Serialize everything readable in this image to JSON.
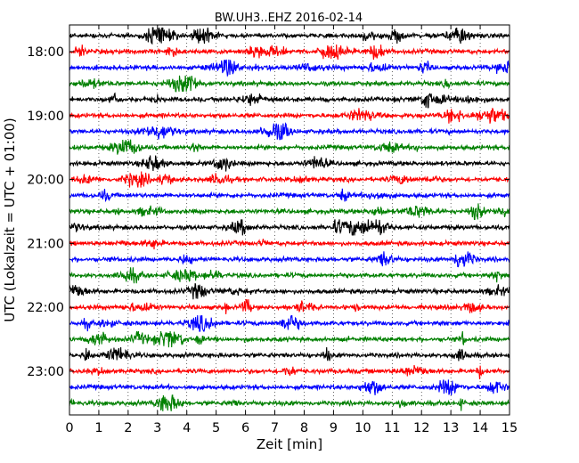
{
  "chart_data": {
    "type": "line",
    "title": "BW.UH3..EHZ 2016-02-14",
    "xlabel": "Zeit  [min]",
    "ylabel": "UTC (Lokalzeit = UTC + 01:00)",
    "xlim": [
      0,
      15
    ],
    "x_ticks": [
      "0",
      "1",
      "2",
      "3",
      "4",
      "5",
      "6",
      "7",
      "8",
      "9",
      "10",
      "11",
      "12",
      "13",
      "14",
      "15"
    ],
    "y_ticks": [
      "18:00",
      "19:00",
      "20:00",
      "21:00",
      "22:00",
      "23:00"
    ],
    "grid": true,
    "trace_interval_min": 15,
    "trace_start": "17:45",
    "traces": [
      {
        "start": "17:45",
        "color": "#000000"
      },
      {
        "start": "18:00",
        "color": "#ff0000"
      },
      {
        "start": "18:15",
        "color": "#0000ff"
      },
      {
        "start": "18:30",
        "color": "#008000"
      },
      {
        "start": "18:45",
        "color": "#000000"
      },
      {
        "start": "19:00",
        "color": "#ff0000"
      },
      {
        "start": "19:15",
        "color": "#0000ff"
      },
      {
        "start": "19:30",
        "color": "#008000"
      },
      {
        "start": "19:45",
        "color": "#000000"
      },
      {
        "start": "20:00",
        "color": "#ff0000"
      },
      {
        "start": "20:15",
        "color": "#0000ff"
      },
      {
        "start": "20:30",
        "color": "#008000"
      },
      {
        "start": "20:45",
        "color": "#000000"
      },
      {
        "start": "21:00",
        "color": "#ff0000"
      },
      {
        "start": "21:15",
        "color": "#0000ff"
      },
      {
        "start": "21:30",
        "color": "#008000"
      },
      {
        "start": "21:45",
        "color": "#000000"
      },
      {
        "start": "22:00",
        "color": "#ff0000"
      },
      {
        "start": "22:15",
        "color": "#0000ff"
      },
      {
        "start": "22:30",
        "color": "#008000"
      },
      {
        "start": "22:45",
        "color": "#000000"
      },
      {
        "start": "23:00",
        "color": "#ff0000"
      },
      {
        "start": "23:15",
        "color": "#0000ff"
      },
      {
        "start": "23:30",
        "color": "#008000"
      }
    ],
    "colors": [
      "#000000",
      "#ff0000",
      "#0000ff",
      "#008000"
    ]
  }
}
